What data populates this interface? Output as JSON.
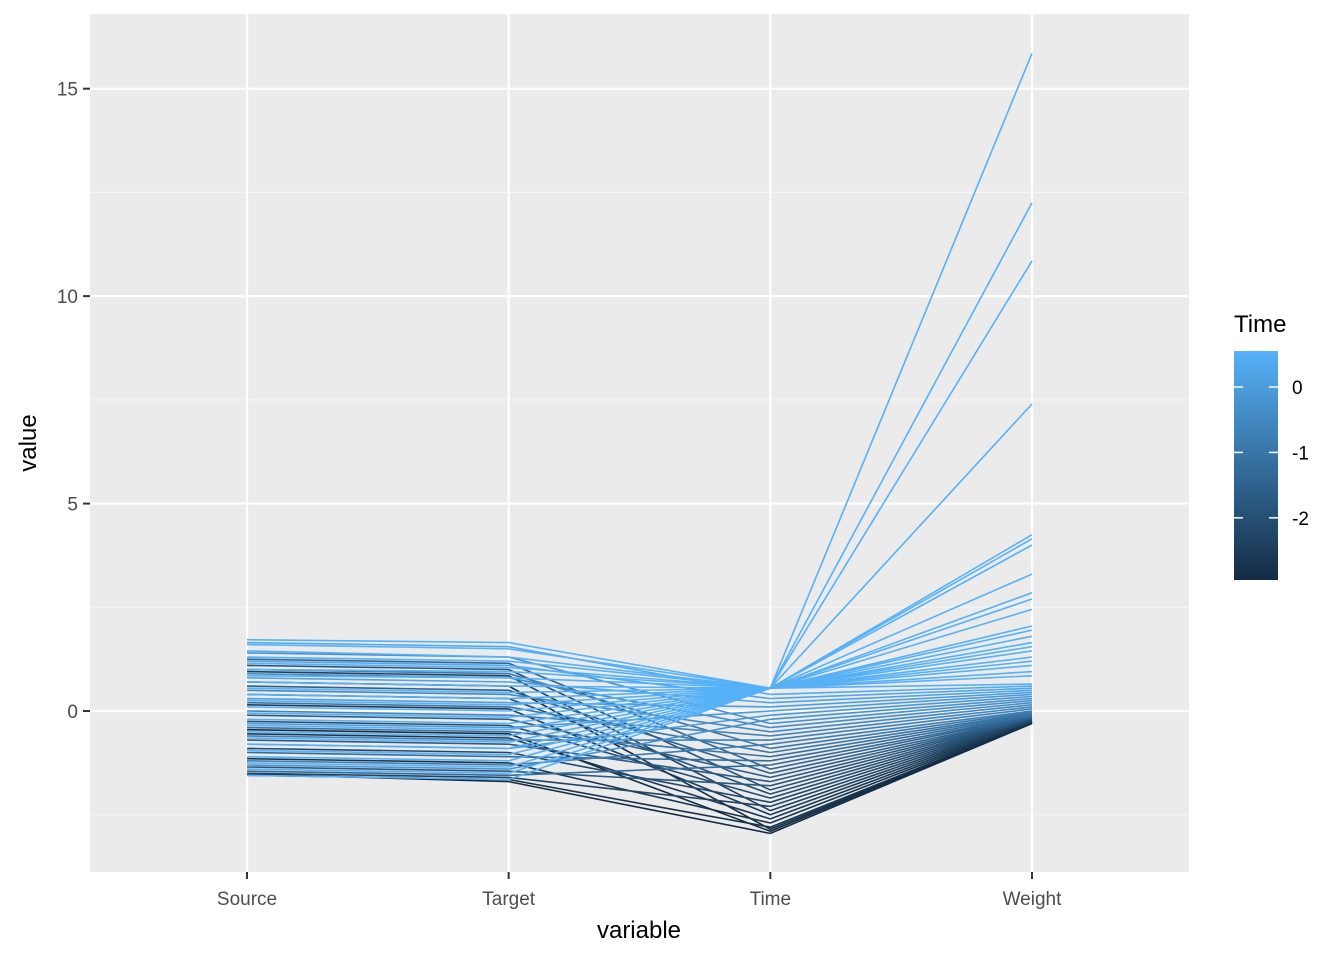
{
  "chart_data": {
    "type": "line",
    "subtype": "parallel-coordinates",
    "title": "",
    "xlabel": "variable",
    "ylabel": "value",
    "categories": [
      "Source",
      "Target",
      "Time",
      "Weight"
    ],
    "ylim": [
      -3.88,
      16.8
    ],
    "yticks": [
      0,
      5,
      10,
      15
    ],
    "grid": true,
    "legend": {
      "title": "Time",
      "position": "right",
      "type": "colorbar",
      "range": [
        -2.95,
        0.55
      ],
      "ticks": [
        0,
        -1,
        -2
      ],
      "low_color": "#132B43",
      "high_color": "#56B1F7"
    },
    "series": [
      {
        "values": [
          1.72,
          1.65,
          0.55,
          15.85
        ]
      },
      {
        "values": [
          1.6,
          1.5,
          0.55,
          12.25
        ]
      },
      {
        "values": [
          1.45,
          1.3,
          0.55,
          10.85
        ]
      },
      {
        "values": [
          1.3,
          1.2,
          0.55,
          7.4
        ]
      },
      {
        "values": [
          1.15,
          1.05,
          0.55,
          4.25
        ]
      },
      {
        "values": [
          1.0,
          0.95,
          0.55,
          4.15
        ]
      },
      {
        "values": [
          0.85,
          0.8,
          0.55,
          4.0
        ]
      },
      {
        "values": [
          0.7,
          0.6,
          0.55,
          3.3
        ]
      },
      {
        "values": [
          0.55,
          0.45,
          0.55,
          2.85
        ]
      },
      {
        "values": [
          0.4,
          0.3,
          0.55,
          2.7
        ]
      },
      {
        "values": [
          0.25,
          0.15,
          0.55,
          2.45
        ]
      },
      {
        "values": [
          0.1,
          0.0,
          0.55,
          2.05
        ]
      },
      {
        "values": [
          -0.05,
          -0.15,
          0.55,
          1.95
        ]
      },
      {
        "values": [
          -0.2,
          -0.3,
          0.55,
          1.8
        ]
      },
      {
        "values": [
          -0.35,
          -0.45,
          0.55,
          1.65
        ]
      },
      {
        "values": [
          -0.5,
          -0.6,
          0.55,
          1.55
        ]
      },
      {
        "values": [
          -0.65,
          -0.75,
          0.55,
          1.45
        ]
      },
      {
        "values": [
          -0.8,
          -0.9,
          0.55,
          1.3
        ]
      },
      {
        "values": [
          -0.95,
          -1.05,
          0.55,
          1.2
        ]
      },
      {
        "values": [
          -1.1,
          -1.2,
          0.55,
          1.1
        ]
      },
      {
        "values": [
          -1.25,
          -1.35,
          0.55,
          0.95
        ]
      },
      {
        "values": [
          -1.4,
          -1.5,
          0.55,
          0.85
        ]
      },
      {
        "values": [
          -1.55,
          -1.65,
          0.55,
          0.65
        ]
      },
      {
        "values": [
          1.65,
          1.55,
          0.4,
          0.6
        ]
      },
      {
        "values": [
          1.2,
          1.1,
          0.3,
          0.55
        ]
      },
      {
        "values": [
          0.8,
          0.7,
          0.2,
          0.5
        ]
      },
      {
        "values": [
          0.3,
          0.2,
          0.1,
          0.45
        ]
      },
      {
        "values": [
          -0.3,
          -0.4,
          0.0,
          0.4
        ]
      },
      {
        "values": [
          -0.8,
          -0.9,
          -0.1,
          0.35
        ]
      },
      {
        "values": [
          -1.3,
          -1.4,
          -0.2,
          0.3
        ]
      },
      {
        "values": [
          1.4,
          1.3,
          -0.3,
          0.25
        ]
      },
      {
        "values": [
          0.9,
          0.8,
          -0.4,
          0.2
        ]
      },
      {
        "values": [
          0.5,
          0.4,
          -0.5,
          0.15
        ]
      },
      {
        "values": [
          0.0,
          -0.1,
          -0.6,
          0.1
        ]
      },
      {
        "values": [
          -0.6,
          -0.7,
          -0.7,
          0.05
        ]
      },
      {
        "values": [
          -1.2,
          -1.3,
          -0.8,
          0.0
        ]
      },
      {
        "values": [
          1.0,
          0.9,
          -0.9,
          -0.03
        ]
      },
      {
        "values": [
          0.2,
          0.1,
          -1.0,
          -0.06
        ]
      },
      {
        "values": [
          -0.4,
          -0.5,
          -1.1,
          -0.08
        ]
      },
      {
        "values": [
          -1.0,
          -1.1,
          -1.2,
          -0.1
        ]
      },
      {
        "values": [
          -1.45,
          -1.55,
          -1.3,
          -0.12
        ]
      },
      {
        "values": [
          1.25,
          1.15,
          -1.4,
          -0.13
        ]
      },
      {
        "values": [
          0.6,
          0.5,
          -1.5,
          -0.15
        ]
      },
      {
        "values": [
          -0.1,
          -0.2,
          -1.6,
          -0.16
        ]
      },
      {
        "values": [
          -0.7,
          -0.8,
          -1.7,
          -0.17
        ]
      },
      {
        "values": [
          -1.35,
          -1.45,
          -1.8,
          -0.18
        ]
      },
      {
        "values": [
          1.1,
          1.0,
          -1.9,
          -0.19
        ]
      },
      {
        "values": [
          0.4,
          0.3,
          -2.0,
          -0.2
        ]
      },
      {
        "values": [
          -0.25,
          -0.35,
          -2.1,
          -0.21
        ]
      },
      {
        "values": [
          -0.9,
          -1.0,
          -2.2,
          -0.22
        ]
      },
      {
        "values": [
          -1.5,
          -1.6,
          -2.3,
          -0.23
        ]
      },
      {
        "values": [
          0.95,
          0.85,
          -2.4,
          -0.24
        ]
      },
      {
        "values": [
          0.15,
          0.05,
          -2.5,
          -0.25
        ]
      },
      {
        "values": [
          -0.55,
          -0.65,
          -2.6,
          -0.26
        ]
      },
      {
        "values": [
          -1.15,
          -1.25,
          -2.7,
          -0.27
        ]
      },
      {
        "values": [
          -1.55,
          -1.65,
          -2.8,
          -0.28
        ]
      },
      {
        "values": [
          0.7,
          0.6,
          -2.85,
          -0.29
        ]
      },
      {
        "values": [
          -0.45,
          -0.55,
          -2.9,
          -0.29
        ]
      },
      {
        "values": [
          -1.52,
          -1.7,
          -2.95,
          -0.3
        ]
      }
    ]
  }
}
